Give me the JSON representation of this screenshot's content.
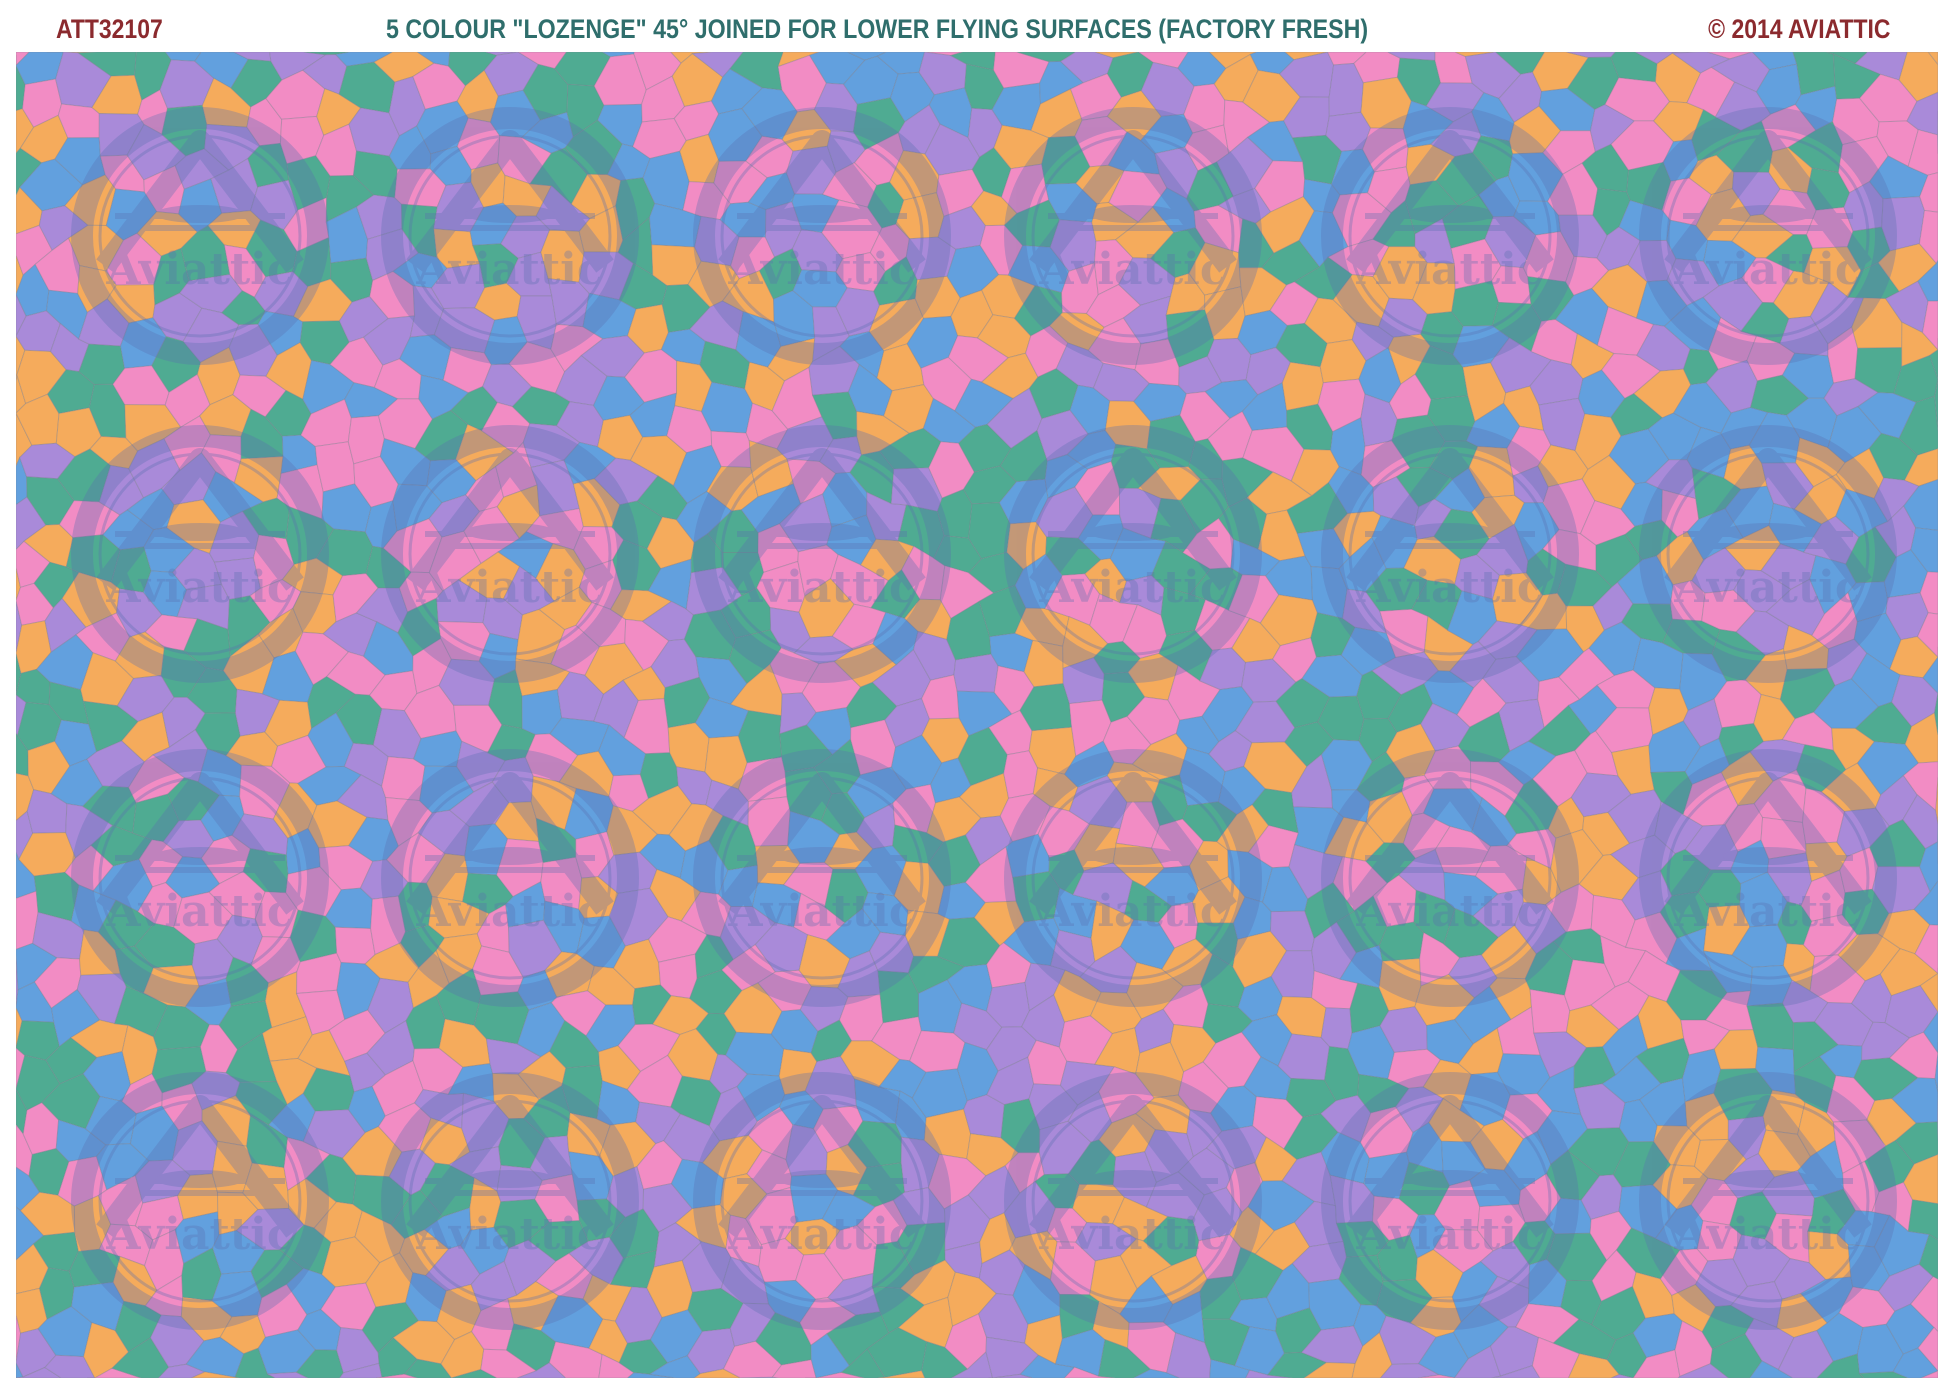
{
  "header": {
    "product_code": "ATT32107",
    "title": "5 COLOUR \"LOZENGE\" 45°  JOINED FOR LOWER FLYING SURFACES (FACTORY FRESH)",
    "copyright": "© 2014 AVIATTIC"
  },
  "pattern": {
    "palette": [
      "#f28cc4",
      "#62a0de",
      "#4fab92",
      "#a98ad9",
      "#f5ab5c"
    ],
    "watermark_text": "Aviattic",
    "watermark_color": "#5a6fb0",
    "watermark_rows": 4,
    "watermark_cols": 6
  }
}
